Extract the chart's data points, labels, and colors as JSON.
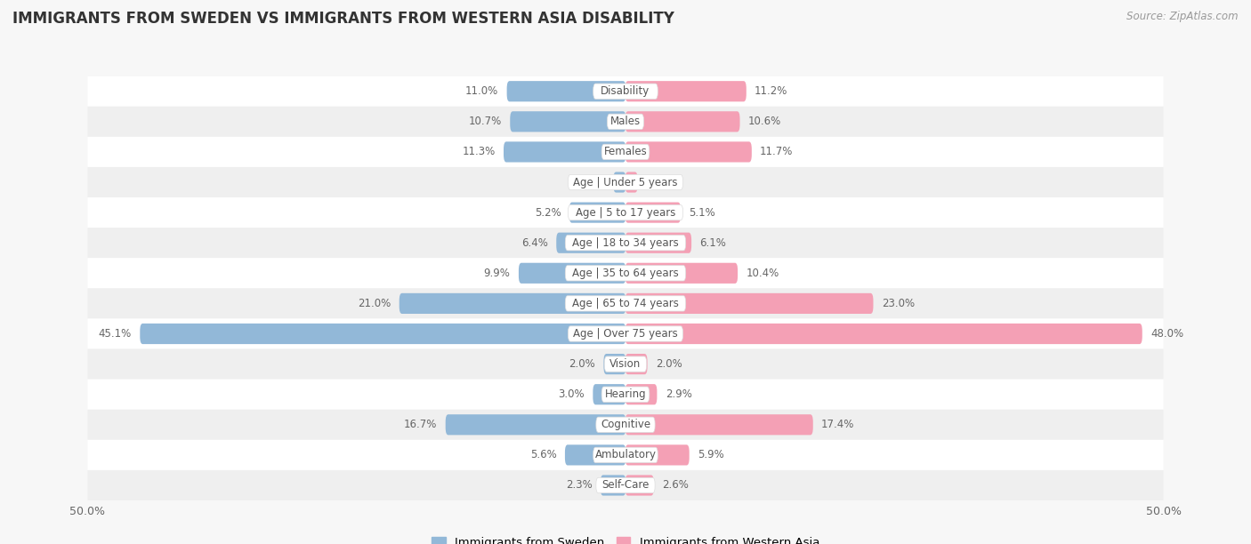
{
  "title": "IMMIGRANTS FROM SWEDEN VS IMMIGRANTS FROM WESTERN ASIA DISABILITY",
  "source": "Source: ZipAtlas.com",
  "categories": [
    "Disability",
    "Males",
    "Females",
    "Age | Under 5 years",
    "Age | 5 to 17 years",
    "Age | 18 to 34 years",
    "Age | 35 to 64 years",
    "Age | 65 to 74 years",
    "Age | Over 75 years",
    "Vision",
    "Hearing",
    "Cognitive",
    "Ambulatory",
    "Self-Care"
  ],
  "sweden_values": [
    11.0,
    10.7,
    11.3,
    1.1,
    5.2,
    6.4,
    9.9,
    21.0,
    45.1,
    2.0,
    3.0,
    16.7,
    5.6,
    2.3
  ],
  "western_asia_values": [
    11.2,
    10.6,
    11.7,
    1.1,
    5.1,
    6.1,
    10.4,
    23.0,
    48.0,
    2.0,
    2.9,
    17.4,
    5.9,
    2.6
  ],
  "sweden_color": "#92b8d8",
  "western_asia_color": "#f4a0b5",
  "axis_limit": 50.0,
  "background_color": "#f7f7f7",
  "row_bg_colors": [
    "#ffffff",
    "#efefef"
  ],
  "label_fontsize": 8.5,
  "value_fontsize": 8.5,
  "title_fontsize": 12,
  "legend_label_sweden": "Immigrants from Sweden",
  "legend_label_western_asia": "Immigrants from Western Asia"
}
